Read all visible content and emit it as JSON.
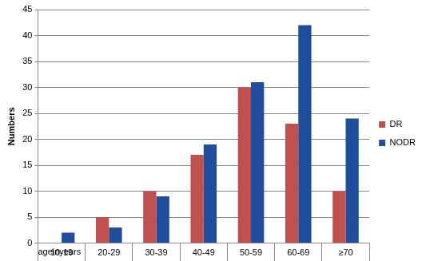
{
  "chart_data": {
    "type": "bar",
    "xlabel": "ageinyears",
    "ylabel": "Numbers",
    "categories": [
      "10-19",
      "20-29",
      "30-39",
      "40-49",
      "50-59",
      "60-69",
      "≥70"
    ],
    "series": [
      {
        "name": "DR",
        "color": "#c0504d",
        "values": [
          0,
          5,
          10,
          17,
          30,
          23,
          10
        ]
      },
      {
        "name": "NODR",
        "color": "#1f4e9c",
        "values": [
          2,
          3,
          9,
          19,
          31,
          42,
          24
        ]
      }
    ],
    "ylim": [
      0,
      45
    ],
    "yticks": [
      0,
      5,
      10,
      15,
      20,
      25,
      30,
      35,
      40,
      45
    ],
    "grid": true,
    "legend": "right"
  }
}
